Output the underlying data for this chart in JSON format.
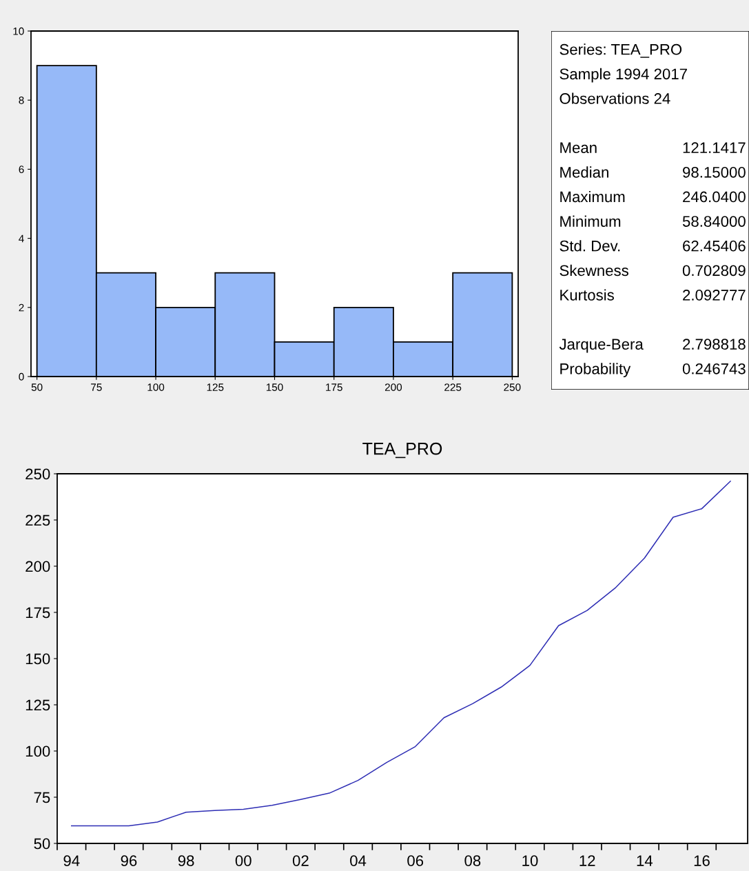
{
  "chart_data": [
    {
      "type": "histogram",
      "bins": [
        50,
        75,
        100,
        125,
        150,
        175,
        200,
        225,
        250
      ],
      "values": [
        9,
        3,
        2,
        3,
        1,
        2,
        1,
        3
      ],
      "color": "#96b9f8",
      "xlim": [
        47.5,
        252.5
      ],
      "xticks": [
        50,
        75,
        100,
        125,
        150,
        175,
        200,
        225,
        250
      ],
      "ylim": [
        0,
        10
      ],
      "yticks": [
        0,
        2,
        4,
        6,
        8,
        10
      ],
      "grid": false
    },
    {
      "type": "other",
      "annotations": [
        "Series: TEA_PRO",
        "Sample 1994 2017",
        "Observations 24"
      ],
      "categories": [
        "Mean",
        "Median",
        "Maximum",
        "Minimum",
        "Std. Dev.",
        "Skewness",
        "Kurtosis",
        null,
        "Jarque-Bera",
        "Probability"
      ],
      "values": [
        121.1417,
        98.15,
        246.04,
        58.84,
        62.45406,
        0.702809,
        2.092777,
        null,
        2.798818,
        0.246743
      ],
      "value_labels": [
        "121.1417",
        "98.15000",
        "246.0400",
        "58.84000",
        "62.45406",
        "0.702809",
        "2.092777",
        null,
        "2.798818",
        "0.246743"
      ]
    },
    {
      "type": "line",
      "title": "TEA_PRO",
      "x": [
        1994,
        1995,
        1996,
        1997,
        1998,
        1999,
        2000,
        2001,
        2002,
        2003,
        2004,
        2005,
        2006,
        2007,
        2008,
        2009,
        2010,
        2011,
        2012,
        2013,
        2014,
        2015,
        2016,
        2017
      ],
      "series": [
        {
          "color": "#2d2db4",
          "values": [
            59.5,
            59.5,
            59.5,
            61.6,
            66.9,
            67.8,
            68.5,
            70.6,
            73.8,
            77.2,
            84.1,
            93.8,
            102.4,
            118.0,
            125.6,
            134.6,
            146.3,
            167.8,
            176.1,
            188.5,
            204.4,
            226.5,
            231.1,
            246.0
          ]
        }
      ],
      "xlim": [
        1993.5,
        2017.6
      ],
      "ylim": [
        50,
        250
      ],
      "yticks": [
        50,
        75,
        100,
        125,
        150,
        175,
        200,
        225,
        250
      ],
      "xticks": [
        {
          "value": 1993.5,
          "label": null
        },
        {
          "value": 1994,
          "label": "94"
        },
        {
          "value": 1994.5,
          "label": null
        },
        {
          "value": 1995.5,
          "label": null
        },
        {
          "value": 1996,
          "label": "96"
        },
        {
          "value": 1996.5,
          "label": null
        },
        {
          "value": 1997.5,
          "label": null
        },
        {
          "value": 1998,
          "label": "98"
        },
        {
          "value": 1998.5,
          "label": null
        },
        {
          "value": 1999.5,
          "label": null
        },
        {
          "value": 2000,
          "label": "00"
        },
        {
          "value": 2000.5,
          "label": null
        },
        {
          "value": 2001.5,
          "label": null
        },
        {
          "value": 2002,
          "label": "02"
        },
        {
          "value": 2002.5,
          "label": null
        },
        {
          "value": 2003.5,
          "label": null
        },
        {
          "value": 2004,
          "label": "04"
        },
        {
          "value": 2004.5,
          "label": null
        },
        {
          "value": 2005.5,
          "label": null
        },
        {
          "value": 2006,
          "label": "06"
        },
        {
          "value": 2006.5,
          "label": null
        },
        {
          "value": 2007.5,
          "label": null
        },
        {
          "value": 2008,
          "label": "08"
        },
        {
          "value": 2008.5,
          "label": null
        },
        {
          "value": 2009.5,
          "label": null
        },
        {
          "value": 2010,
          "label": "10"
        },
        {
          "value": 2010.5,
          "label": null
        },
        {
          "value": 2011.5,
          "label": null
        },
        {
          "value": 2012,
          "label": "12"
        },
        {
          "value": 2012.5,
          "label": null
        },
        {
          "value": 2013.5,
          "label": null
        },
        {
          "value": 2014,
          "label": "14"
        },
        {
          "value": 2014.5,
          "label": null
        },
        {
          "value": 2015.5,
          "label": null
        },
        {
          "value": 2016,
          "label": "16"
        },
        {
          "value": 2016.5,
          "label": null
        }
      ],
      "grid": false,
      "line_style": "solid",
      "marker": "none"
    }
  ]
}
